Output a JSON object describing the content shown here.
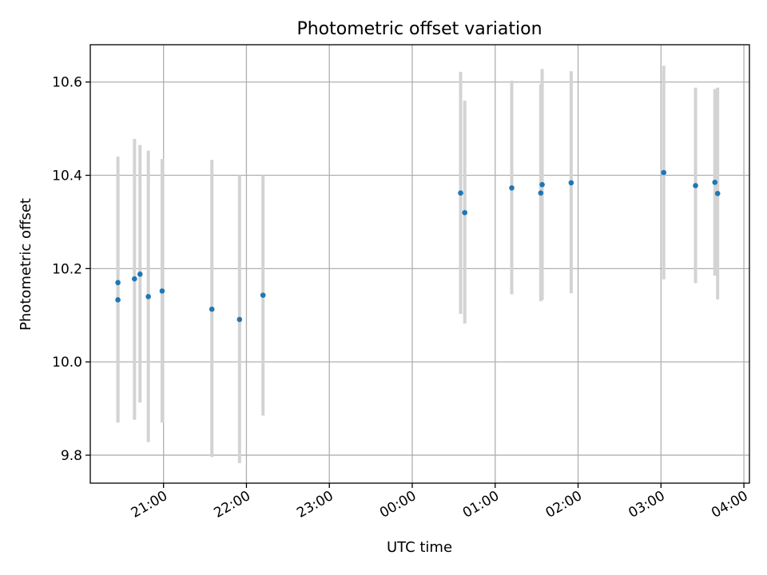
{
  "chart_data": {
    "type": "scatter",
    "title": "Photometric offset variation",
    "xlabel": "UTC time",
    "ylabel": "Photometric offset",
    "x_tick_labels": [
      "21:00",
      "22:00",
      "23:00",
      "00:00",
      "01:00",
      "02:00",
      "03:00",
      "04:00"
    ],
    "x_ticks": [
      "21:00",
      "22:00",
      "23:00",
      "00:00",
      "01:00",
      "02:00",
      "03:00",
      "04:00"
    ],
    "y_ticks": [
      9.8,
      10.0,
      10.2,
      10.4,
      10.6
    ],
    "y_tick_labels": [
      "9.8",
      "10.0",
      "10.2",
      "10.4",
      "10.6"
    ],
    "xlim": [
      "20:07",
      "04:04"
    ],
    "ylim": [
      9.74,
      10.68
    ],
    "grid": true,
    "marker_color": "#1f77b4",
    "errorbar_color": "#d3d3d3",
    "points": [
      {
        "time": "20:27",
        "y": 10.17,
        "ylow": 9.87,
        "yhigh": 10.44
      },
      {
        "time": "20:27",
        "y": 10.133,
        "ylow": 9.87,
        "yhigh": 10.395
      },
      {
        "time": "20:39",
        "y": 10.178,
        "ylow": 9.876,
        "yhigh": 10.478
      },
      {
        "time": "20:43",
        "y": 10.188,
        "ylow": 9.913,
        "yhigh": 10.465
      },
      {
        "time": "20:49",
        "y": 10.14,
        "ylow": 9.828,
        "yhigh": 10.453
      },
      {
        "time": "20:59",
        "y": 10.152,
        "ylow": 9.87,
        "yhigh": 10.435
      },
      {
        "time": "21:35",
        "y": 10.113,
        "ylow": 9.796,
        "yhigh": 10.433
      },
      {
        "time": "21:55",
        "y": 10.091,
        "ylow": 9.783,
        "yhigh": 10.4
      },
      {
        "time": "22:12",
        "y": 10.143,
        "ylow": 9.885,
        "yhigh": 10.4
      },
      {
        "time": "00:35",
        "y": 10.362,
        "ylow": 10.103,
        "yhigh": 10.622
      },
      {
        "time": "00:38",
        "y": 10.32,
        "ylow": 10.082,
        "yhigh": 10.56
      },
      {
        "time": "01:12",
        "y": 10.373,
        "ylow": 10.145,
        "yhigh": 10.603
      },
      {
        "time": "01:33",
        "y": 10.362,
        "ylow": 10.13,
        "yhigh": 10.595
      },
      {
        "time": "01:34",
        "y": 10.38,
        "ylow": 10.133,
        "yhigh": 10.628
      },
      {
        "time": "01:55",
        "y": 10.384,
        "ylow": 10.147,
        "yhigh": 10.623
      },
      {
        "time": "03:02",
        "y": 10.406,
        "ylow": 10.177,
        "yhigh": 10.635
      },
      {
        "time": "03:25",
        "y": 10.378,
        "ylow": 10.169,
        "yhigh": 10.588
      },
      {
        "time": "03:39",
        "y": 10.385,
        "ylow": 10.185,
        "yhigh": 10.585
      },
      {
        "time": "03:41",
        "y": 10.361,
        "ylow": 10.134,
        "yhigh": 10.588
      }
    ]
  }
}
